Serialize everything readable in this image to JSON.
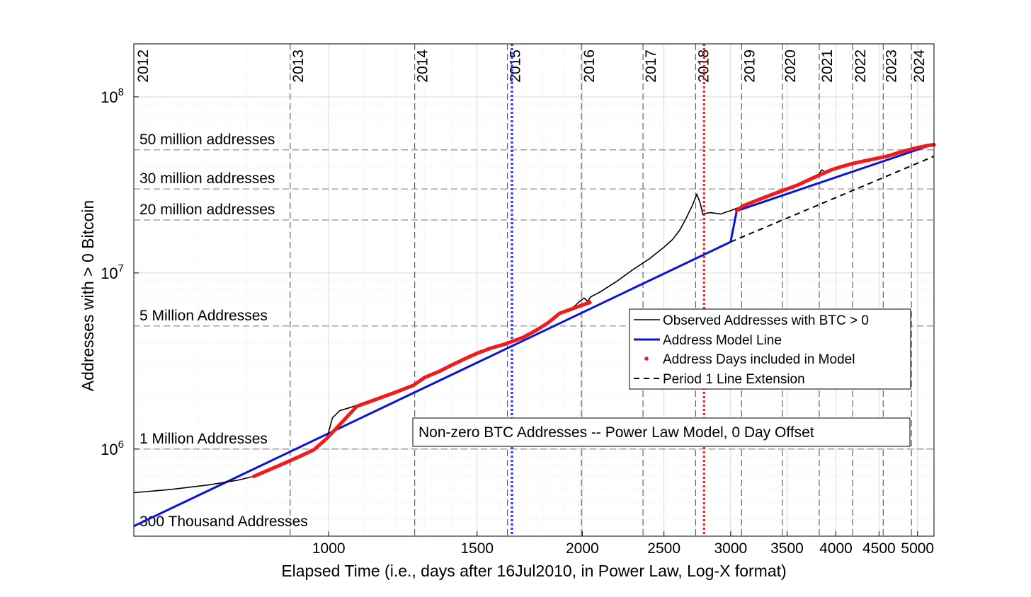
{
  "chart_data": {
    "type": "line",
    "title": "",
    "xlabel": "Elapsed Time (i.e., days after 16Jul2010, in Power Law, Log-X format)",
    "ylabel": "Addresses with > 0 Bitcoin",
    "x_scale": "log",
    "y_scale": "log",
    "xlim": [
      587,
      5230
    ],
    "ylim": [
      320000,
      200000000
    ],
    "x_ticks": [
      1000,
      1500,
      2000,
      2500,
      3000,
      3500,
      4000,
      4500,
      5000
    ],
    "x_tick_labels": [
      "1000",
      "1500",
      "2000",
      "2500",
      "3000",
      "3500",
      "4000",
      "4500",
      "5000"
    ],
    "y_ticks": [
      1000000,
      10000000,
      100000000
    ],
    "y_tick_labels": [
      {
        "base": "10",
        "exp": "6"
      },
      {
        "base": "10",
        "exp": "7"
      },
      {
        "base": "10",
        "exp": "8"
      }
    ],
    "grid": true,
    "legend_position": "center-right",
    "annotation_box": "Non-zero BTC Addresses -- Power Law Model, 0 Day Offset",
    "year_markers": [
      {
        "label": "2012",
        "x": 536
      },
      {
        "label": "2013",
        "x": 900
      },
      {
        "label": "2014",
        "x": 1265
      },
      {
        "label": "2015",
        "x": 1630
      },
      {
        "label": "2016",
        "x": 1995
      },
      {
        "label": "2017",
        "x": 2361
      },
      {
        "label": "2018",
        "x": 2726
      },
      {
        "label": "2019",
        "x": 3091
      },
      {
        "label": "2020",
        "x": 3456
      },
      {
        "label": "2021",
        "x": 3822
      },
      {
        "label": "2022",
        "x": 4187
      },
      {
        "label": "2023",
        "x": 4552
      },
      {
        "label": "2024",
        "x": 4917
      }
    ],
    "vertical_markers": [
      {
        "x": 1650,
        "color": "#3344ee"
      },
      {
        "x": 2790,
        "color": "#ee3333"
      }
    ],
    "horizontal_levels": [
      {
        "y": 50000000,
        "label": "50 million addresses"
      },
      {
        "y": 30000000,
        "label": "30 million addresses"
      },
      {
        "y": 20000000,
        "label": "20 million addresses"
      },
      {
        "y": 5000000,
        "label": "5 Million Addresses"
      },
      {
        "y": 1000000,
        "label": "1 Million Addresses"
      },
      {
        "y": 300000,
        "label": "300 Thousand Addresses"
      }
    ],
    "series": [
      {
        "name": "Observed Addresses with BTC > 0",
        "color": "#000000",
        "style": "solid",
        "points": [
          [
            587,
            565000
          ],
          [
            650,
            590000
          ],
          [
            720,
            625000
          ],
          [
            780,
            665000
          ],
          [
            815,
            700000
          ],
          [
            870,
            800000
          ],
          [
            920,
            900000
          ],
          [
            960,
            990000
          ],
          [
            995,
            1150000
          ],
          [
            1010,
            1500000
          ],
          [
            1030,
            1650000
          ],
          [
            1060,
            1720000
          ],
          [
            1100,
            1820000
          ],
          [
            1150,
            1950000
          ],
          [
            1200,
            2100000
          ],
          [
            1260,
            2300000
          ],
          [
            1300,
            2550000
          ],
          [
            1350,
            2750000
          ],
          [
            1400,
            3000000
          ],
          [
            1450,
            3250000
          ],
          [
            1500,
            3500000
          ],
          [
            1560,
            3750000
          ],
          [
            1620,
            3950000
          ],
          [
            1700,
            4300000
          ],
          [
            1760,
            4700000
          ],
          [
            1820,
            5200000
          ],
          [
            1880,
            5900000
          ],
          [
            1920,
            6100000
          ],
          [
            1960,
            6500000
          ],
          [
            1985,
            6900000
          ],
          [
            2010,
            7200000
          ],
          [
            2030,
            6900000
          ],
          [
            2045,
            7300000
          ],
          [
            2100,
            7800000
          ],
          [
            2200,
            9000000
          ],
          [
            2300,
            10500000
          ],
          [
            2400,
            12000000
          ],
          [
            2500,
            14000000
          ],
          [
            2560,
            15500000
          ],
          [
            2610,
            17500000
          ],
          [
            2650,
            20000000
          ],
          [
            2700,
            24000000
          ],
          [
            2735,
            28000000
          ],
          [
            2760,
            25000000
          ],
          [
            2780,
            21500000
          ],
          [
            2800,
            21800000
          ],
          [
            2840,
            22000000
          ],
          [
            2880,
            21800000
          ],
          [
            2920,
            21600000
          ],
          [
            2950,
            22000000
          ],
          [
            3000,
            22600000
          ],
          [
            3100,
            24000000
          ],
          [
            3200,
            25500000
          ],
          [
            3300,
            27000000
          ],
          [
            3400,
            28500000
          ],
          [
            3500,
            30000000
          ],
          [
            3600,
            31500000
          ],
          [
            3700,
            33500000
          ],
          [
            3800,
            35500000
          ],
          [
            3850,
            38500000
          ],
          [
            3880,
            37500000
          ],
          [
            3950,
            38500000
          ],
          [
            4050,
            40000000
          ],
          [
            4200,
            42000000
          ],
          [
            4400,
            44000000
          ],
          [
            4600,
            46000000
          ],
          [
            4800,
            49000000
          ],
          [
            5000,
            51500000
          ],
          [
            5150,
            53000000
          ],
          [
            5230,
            53500000
          ]
        ]
      },
      {
        "name": "Address Model Line",
        "color": "#0a14d8",
        "style": "solid",
        "points": [
          [
            587,
            365000
          ],
          [
            3000,
            15000000
          ],
          [
            3050,
            22500000
          ],
          [
            5230,
            54000000
          ]
        ]
      },
      {
        "name": "Address Days included in Model",
        "color": "#ee1c1c",
        "style": "dots",
        "points": [
          [
            815,
            700000
          ],
          [
            870,
            800000
          ],
          [
            920,
            900000
          ],
          [
            960,
            990000
          ],
          [
            995,
            1150000
          ],
          [
            1080,
            1750000
          ],
          [
            1150,
            1950000
          ],
          [
            1200,
            2100000
          ],
          [
            1260,
            2300000
          ],
          [
            1300,
            2550000
          ],
          [
            1350,
            2750000
          ],
          [
            1400,
            3000000
          ],
          [
            1450,
            3250000
          ],
          [
            1500,
            3500000
          ],
          [
            1560,
            3750000
          ],
          [
            1620,
            3950000
          ],
          [
            1700,
            4300000
          ],
          [
            1760,
            4700000
          ],
          [
            1820,
            5200000
          ],
          [
            1880,
            5900000
          ],
          [
            2040,
            6800000
          ],
          [
            3050,
            22600000
          ],
          [
            3100,
            24000000
          ],
          [
            3200,
            25500000
          ],
          [
            3300,
            27000000
          ],
          [
            3400,
            28500000
          ],
          [
            3500,
            30000000
          ],
          [
            3600,
            31500000
          ],
          [
            3700,
            33500000
          ],
          [
            3800,
            35500000
          ],
          [
            3950,
            38500000
          ],
          [
            4050,
            40000000
          ],
          [
            4200,
            42000000
          ],
          [
            4400,
            44000000
          ],
          [
            4600,
            46000000
          ],
          [
            4800,
            49000000
          ],
          [
            5000,
            51500000
          ],
          [
            5150,
            53000000
          ],
          [
            5230,
            53500000
          ]
        ]
      },
      {
        "name": "Period 1 Line Extension",
        "color": "#000000",
        "style": "dashed",
        "points": [
          [
            3000,
            15000000
          ],
          [
            5230,
            46000000
          ]
        ]
      }
    ]
  }
}
